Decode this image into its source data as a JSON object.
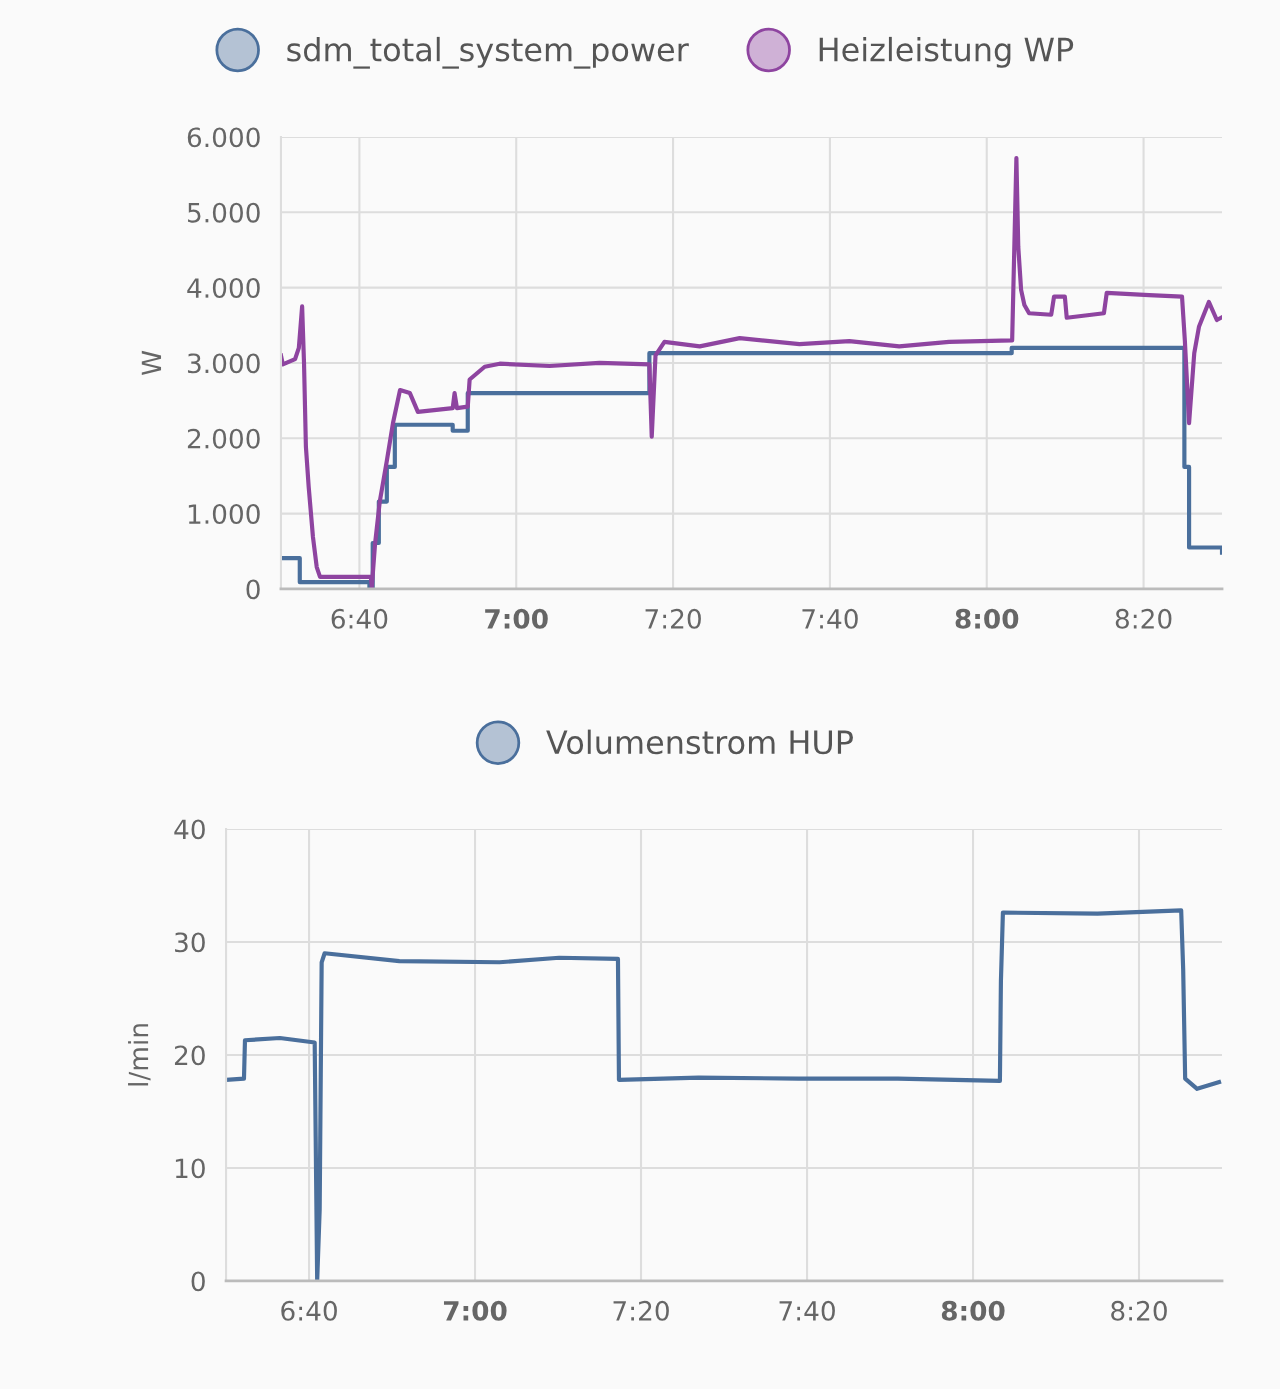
{
  "chart_data": [
    {
      "type": "line",
      "ylabel": "W",
      "xlim": [
        6.5,
        8.5
      ],
      "ylim": [
        0,
        6000
      ],
      "xticks": [
        {
          "value": 6.6667,
          "label": "6:40"
        },
        {
          "value": 7,
          "label": "7:00"
        },
        {
          "value": 7.3333,
          "label": "7:20"
        },
        {
          "value": 7.6667,
          "label": "7:40"
        },
        {
          "value": 8,
          "label": "8:00"
        },
        {
          "value": 8.3333,
          "label": "8:20"
        }
      ],
      "yticks": [
        0,
        {
          "value": 1000,
          "label": "1.000"
        },
        {
          "value": 2000,
          "label": "2.000"
        },
        {
          "value": 3000,
          "label": "3.000"
        },
        {
          "value": 4000,
          "label": "4.000"
        },
        {
          "value": 5000,
          "label": "5.000"
        },
        {
          "value": 6000,
          "label": "6.000"
        }
      ],
      "grid": true,
      "legend": "top",
      "marker": "none",
      "line_style": "solid",
      "series": [
        {
          "name": "sdm_total_system_power",
          "type": "step",
          "color": "#4a6f9c",
          "x": [
            6.5,
            6.54,
            6.688,
            6.695,
            6.708,
            6.725,
            6.742,
            6.865,
            6.897,
            7.283,
            8.053,
            8.42,
            8.43,
            8.5
          ],
          "values": [
            410,
            90,
            0,
            610,
            1160,
            1620,
            2180,
            2100,
            2600,
            3130,
            3200,
            1620,
            550,
            480
          ]
        },
        {
          "name": "Heizleistung WP",
          "color": "#8e44a0",
          "x": [
            6.5,
            6.504,
            6.53,
            6.538,
            6.545,
            6.549,
            6.553,
            6.559,
            6.568,
            6.576,
            6.583,
            6.691,
            6.693,
            6.7,
            6.71,
            6.725,
            6.738,
            6.753,
            6.774,
            6.791,
            6.865,
            6.869,
            6.874,
            6.897,
            6.901,
            6.933,
            6.965,
            7.071,
            7.177,
            7.283,
            7.288,
            7.296,
            7.315,
            7.39,
            7.475,
            7.602,
            7.708,
            7.814,
            7.92,
            8.054,
            8.063,
            8.067,
            8.073,
            8.08,
            8.09,
            8.137,
            8.143,
            8.166,
            8.17,
            8.249,
            8.255,
            8.345,
            8.415,
            8.421,
            8.43,
            8.441,
            8.451,
            8.472,
            8.489,
            8.498
          ],
          "values": [
            3100,
            2980,
            3050,
            3200,
            3750,
            3000,
            1890,
            1350,
            690,
            290,
            160,
            160,
            20,
            600,
            1160,
            1700,
            2200,
            2640,
            2600,
            2350,
            2400,
            2600,
            2400,
            2420,
            2780,
            2950,
            2990,
            2960,
            3000,
            2980,
            2020,
            3100,
            3280,
            3220,
            3330,
            3250,
            3290,
            3220,
            3280,
            3300,
            5720,
            4540,
            3970,
            3770,
            3660,
            3640,
            3880,
            3880,
            3600,
            3660,
            3930,
            3900,
            3880,
            3300,
            2200,
            3130,
            3480,
            3810,
            3570,
            3600
          ]
        }
      ]
    },
    {
      "type": "line",
      "ylabel": "l/min",
      "xlim": [
        6.5,
        8.5
      ],
      "ylim": [
        0,
        40
      ],
      "xticks": [
        {
          "value": 6.6667,
          "label": "6:40"
        },
        {
          "value": 7,
          "label": "7:00"
        },
        {
          "value": 7.3333,
          "label": "7:20"
        },
        {
          "value": 7.6667,
          "label": "7:40"
        },
        {
          "value": 8,
          "label": "8:00"
        },
        {
          "value": 8.3333,
          "label": "8:20"
        }
      ],
      "yticks": [
        0,
        10,
        20,
        30,
        40
      ],
      "grid": true,
      "legend": "top",
      "marker": "none",
      "line_style": "solid",
      "series": [
        {
          "name": "Volumenstrom HUP",
          "color": "#4a6f9c",
          "x": [
            6.5,
            6.536,
            6.538,
            6.608,
            6.678,
            6.68,
            6.683,
            6.688,
            6.692,
            6.698,
            6.848,
            7.049,
            7.169,
            7.287,
            7.289,
            7.449,
            7.649,
            7.849,
            8.054,
            8.056,
            8.06,
            8.25,
            8.418,
            8.422,
            8.426,
            8.45,
            8.494
          ],
          "values": [
            17.8,
            17.9,
            21.3,
            21.5,
            21.1,
            12.7,
            0,
            6.3,
            28.2,
            29.0,
            28.3,
            28.2,
            28.6,
            28.5,
            17.8,
            18.0,
            17.9,
            17.9,
            17.7,
            26.5,
            32.6,
            32.5,
            32.8,
            27.6,
            17.9,
            17.0,
            17.6
          ]
        }
      ]
    }
  ]
}
